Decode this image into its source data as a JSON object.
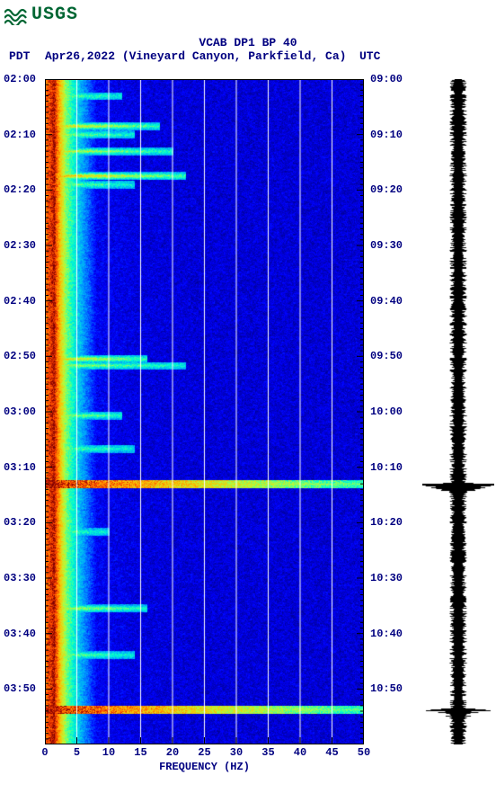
{
  "logo": {
    "text": "USGS",
    "color": "#006633"
  },
  "title": "VCAB DP1 BP 40",
  "subtitle": {
    "left_tz": "PDT",
    "location": "Apr26,2022 (Vineyard Canyon, Parkfield, Ca)",
    "right_tz": "UTC"
  },
  "colors": {
    "title_color": "#000080",
    "background": "#ffffff",
    "plot_border": "#000000",
    "grid_line": "#ffffff",
    "waveform": "#000000"
  },
  "spectrogram": {
    "type": "heatmap",
    "x_axis": {
      "label": "FREQUENCY (HZ)",
      "min": 0,
      "max": 50,
      "tick_step": 5,
      "ticks": [
        0,
        5,
        10,
        15,
        20,
        25,
        30,
        35,
        40,
        45,
        50
      ],
      "label_fontsize": 12
    },
    "y_axis_left": {
      "label_prefix": "PDT",
      "ticks": [
        "02:00",
        "02:10",
        "02:20",
        "02:30",
        "02:40",
        "02:50",
        "03:00",
        "03:10",
        "03:20",
        "03:30",
        "03:40",
        "03:50"
      ],
      "tick_positions_pct": [
        0,
        8.33,
        16.67,
        25.0,
        33.33,
        41.67,
        50.0,
        58.33,
        66.67,
        75.0,
        83.33,
        91.67
      ],
      "minor_per_major": 10
    },
    "y_axis_right": {
      "label_prefix": "UTC",
      "ticks": [
        "09:00",
        "09:10",
        "09:20",
        "09:30",
        "09:40",
        "09:50",
        "10:00",
        "10:10",
        "10:20",
        "10:30",
        "10:40",
        "10:50"
      ],
      "tick_positions_pct": [
        0,
        8.33,
        16.67,
        25.0,
        33.33,
        41.67,
        50.0,
        58.33,
        66.67,
        75.0,
        83.33,
        91.67
      ]
    },
    "colormap": {
      "name": "jet-like",
      "stops": [
        {
          "v": 0.0,
          "hex": "#000080"
        },
        {
          "v": 0.15,
          "hex": "#0000ff"
        },
        {
          "v": 0.35,
          "hex": "#00a0ff"
        },
        {
          "v": 0.5,
          "hex": "#00ffd0"
        },
        {
          "v": 0.65,
          "hex": "#b0ff40"
        },
        {
          "v": 0.8,
          "hex": "#ffc000"
        },
        {
          "v": 0.92,
          "hex": "#ff4000"
        },
        {
          "v": 1.0,
          "hex": "#800000"
        }
      ]
    },
    "grid_vertical_at": [
      5,
      10,
      15,
      20,
      25,
      30,
      35,
      40,
      45
    ],
    "low_freq_band": {
      "peak_hz": 1.5,
      "warm_width_hz": 1.8,
      "transition_to_hz": 8.0
    },
    "horizontal_events": [
      {
        "t_pct": 2.5,
        "intensity": 0.55,
        "extent_hz": 12
      },
      {
        "t_pct": 7.0,
        "intensity": 0.85,
        "extent_hz": 18
      },
      {
        "t_pct": 8.3,
        "intensity": 0.6,
        "extent_hz": 14
      },
      {
        "t_pct": 10.8,
        "intensity": 0.7,
        "extent_hz": 20
      },
      {
        "t_pct": 14.5,
        "intensity": 0.95,
        "extent_hz": 22
      },
      {
        "t_pct": 15.8,
        "intensity": 0.55,
        "extent_hz": 14
      },
      {
        "t_pct": 42.0,
        "intensity": 0.85,
        "extent_hz": 16
      },
      {
        "t_pct": 43.0,
        "intensity": 0.6,
        "extent_hz": 22
      },
      {
        "t_pct": 50.5,
        "intensity": 0.7,
        "extent_hz": 12
      },
      {
        "t_pct": 55.5,
        "intensity": 0.5,
        "extent_hz": 14
      },
      {
        "t_pct": 60.8,
        "intensity": 1.0,
        "extent_hz": 50
      },
      {
        "t_pct": 68.0,
        "intensity": 0.5,
        "extent_hz": 10
      },
      {
        "t_pct": 79.5,
        "intensity": 0.7,
        "extent_hz": 16
      },
      {
        "t_pct": 86.5,
        "intensity": 0.55,
        "extent_hz": 14
      },
      {
        "t_pct": 94.7,
        "intensity": 1.0,
        "extent_hz": 50
      }
    ],
    "broadband_bursts": [
      {
        "t_pct": 60.8,
        "color_extent_hz": 50
      },
      {
        "t_pct": 94.7,
        "color_extent_hz": 50
      }
    ]
  },
  "waveform": {
    "type": "seismogram",
    "base_amplitude": 0.18,
    "spikes": [
      {
        "t_pct": 60.8,
        "amp": 1.0,
        "decay_rows": 18
      },
      {
        "t_pct": 94.7,
        "amp": 0.9,
        "decay_rows": 16
      },
      {
        "t_pct": 42.0,
        "amp": 0.35,
        "decay_rows": 6
      },
      {
        "t_pct": 14.5,
        "amp": 0.28,
        "decay_rows": 5
      }
    ],
    "color": "#000000"
  },
  "footer": ""
}
